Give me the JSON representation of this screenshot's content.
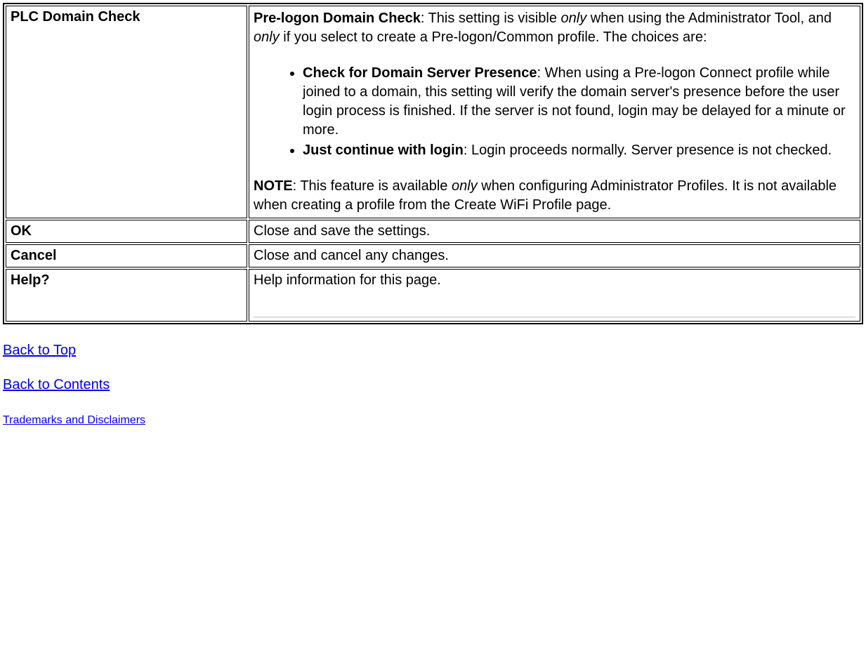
{
  "table": {
    "rows": [
      {
        "label": "PLC Domain Check",
        "intro": {
          "title": "Pre-logon Domain Check",
          "text_before_only1": ": This setting is visible ",
          "only1": "only",
          "text_mid": " when using the Administrator Tool, and ",
          "only2": "only",
          "text_after": " if you select to create a Pre-logon/Common profile. The choices are:"
        },
        "bullets": [
          {
            "title": "Check for Domain Server Presence",
            "text": ": When using a Pre-logon Connect profile while joined to a domain, this setting will verify the domain server's presence before the user login process is finished. If the server is not found, login may be delayed for a minute or more."
          },
          {
            "title": "Just continue with login",
            "text": ": Login proceeds normally. Server presence is not checked."
          }
        ],
        "note": {
          "label": "NOTE",
          "text_before_only": ": This feature is available ",
          "only": "only",
          "text_after": " when configuring Administrator Profiles. It is not available when creating a profile from the Create WiFi Profile page."
        }
      },
      {
        "label": "OK",
        "desc": "Close and save the settings."
      },
      {
        "label": "Cancel",
        "desc": "Close and cancel any changes."
      },
      {
        "label": "Help?",
        "desc": "Help information for this page."
      }
    ]
  },
  "links": {
    "back_to_top": "Back to Top",
    "back_to_contents": "Back to Contents",
    "trademarks": "Trademarks and Disclaimers"
  },
  "colors": {
    "link_color": "#0000ee",
    "border_color": "#000000",
    "background": "#ffffff",
    "text_color": "#000000"
  }
}
